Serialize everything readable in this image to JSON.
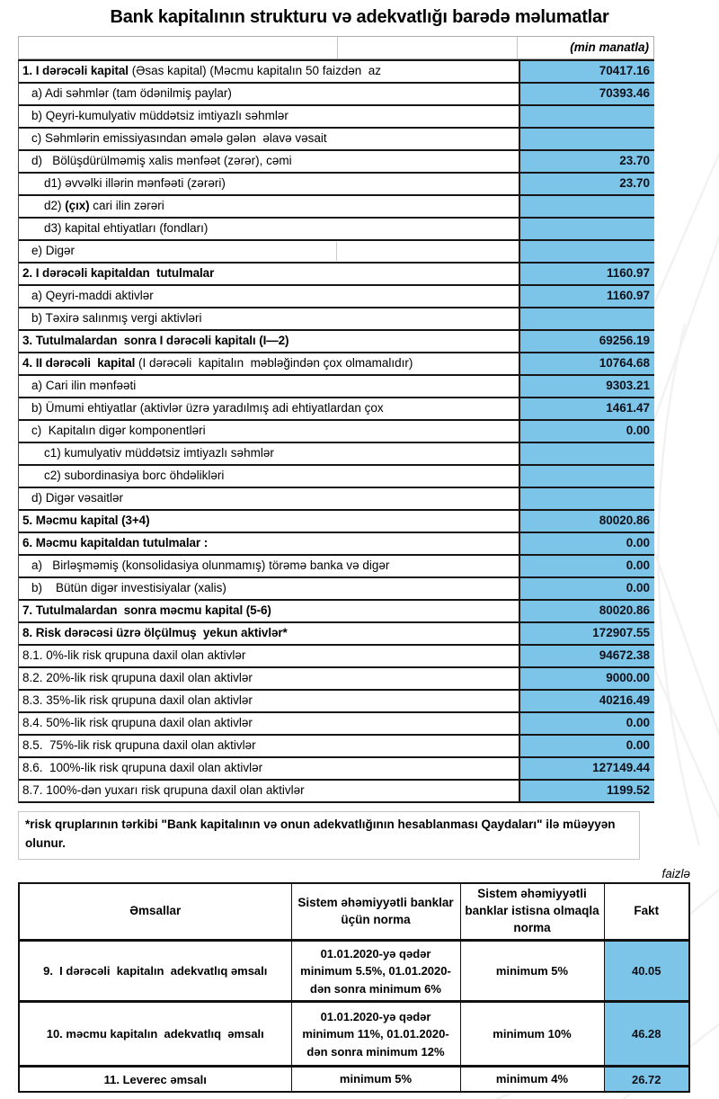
{
  "title": "Bank kapitalının strukturu və adekvatlığı barədə məlumatlar",
  "colors": {
    "cell_blue": "#7cc5e9",
    "border_dark": "#161616"
  },
  "main_table": {
    "unit_label": "(min manatla)",
    "rows": [
      {
        "bold": "1. I dərəcəli kapital",
        "text": " (Əsas kapital) (Məcmu kapitalın 50 faizdən  az",
        "value": "70417.16",
        "indent": 0
      },
      {
        "text": "a) Adi səhmlər (tam ödənilmiş paylar)",
        "value": "70393.46",
        "indent": 1
      },
      {
        "text": "b) Qeyri-kumulyativ müddətsiz imtiyazlı səhmlər",
        "value": "",
        "indent": 1
      },
      {
        "text": "c) Səhmlərin emissiyasından əmələ gələn  əlavə vəsait",
        "value": "",
        "indent": 1
      },
      {
        "text": "d)   Bölüşdürülməmiş xalis mənfəət (zərər), cəmi",
        "value": "23.70",
        "indent": 1
      },
      {
        "text": "d1) əvvəlki illərin mənfəəti (zərəri)",
        "value": "23.70",
        "indent": 2
      },
      {
        "pre": "d2) ",
        "bold": "(çıx)",
        "text": " cari ilin zərəri",
        "value": "",
        "indent": 2
      },
      {
        "text": "d3) kapital ehtiyatları (fondları)",
        "value": "",
        "indent": 2
      },
      {
        "text": "e) Digər",
        "value": "",
        "indent": 1,
        "divider": true
      },
      {
        "bold": "2. I dərəcəli kapitaldan  tutulmalar",
        "value": "1160.97",
        "indent": 0
      },
      {
        "text": "a) Qeyri-maddi aktivlər",
        "value": "1160.97",
        "indent": 1
      },
      {
        "text": "b) Təxirə salınmış vergi aktivləri",
        "value": "",
        "indent": 1
      },
      {
        "bold": "3. Tutulmalardan  sonra I dərəcəli kapitalı (I—2)",
        "value": "69256.19",
        "indent": 0
      },
      {
        "bold": "4. II dərəcəli  kapital",
        "text": " (I dərəcəli  kapitalın  məbləğindən çox olmamalıdır)",
        "value": "10764.68",
        "indent": 0
      },
      {
        "text": "a) Cari ilin mənfəəti",
        "value": "9303.21",
        "indent": 1
      },
      {
        "text": "b) Ümumi ehtiyatlar (aktivlər üzrə yaradılmış adi ehtiyatlardan çox",
        "value": "1461.47",
        "indent": 1
      },
      {
        "text": "c)  Kapitalın digər komponentləri",
        "value": "0.00",
        "indent": 1
      },
      {
        "text": "c1) kumulyativ müddətsiz imtiyazlı səhmlər",
        "value": "",
        "indent": 2
      },
      {
        "text": "c2) subordinasiya borc öhdəlikləri",
        "value": "",
        "indent": 2
      },
      {
        "text": "d) Digər vəsaitlər",
        "value": "",
        "indent": 1
      },
      {
        "bold": "5. Məcmu kapital (3+4)",
        "value": "80020.86",
        "indent": 0
      },
      {
        "bold": "6. Məcmu kapitaldan tutulmalar :",
        "value": "0.00",
        "indent": 0
      },
      {
        "text": "a)   Birləşməmiş (konsolidasiya olunmamış) törəmə banka və digər",
        "value": "0.00",
        "indent": 1
      },
      {
        "text": "b)    Bütün digər investisiyalar (xalis)",
        "value": "0.00",
        "indent": 1
      },
      {
        "bold": "7. Tutulmalardan  sonra məcmu kapital (5-6)",
        "value": "80020.86",
        "indent": 0
      },
      {
        "bold": "8. Risk dərəcəsi üzrə ölçülmuş  yekun aktivlər*",
        "value": "172907.55",
        "indent": 0
      },
      {
        "text": "8.1. 0%-lik risk qrupuna daxil olan aktivlər",
        "value": "94672.38",
        "indent": 0
      },
      {
        "text": "8.2. 20%-lik risk qrupuna daxil olan aktivlər",
        "value": "9000.00",
        "indent": 0
      },
      {
        "text": "8.3. 35%-lik risk qrupuna daxil olan aktivlər",
        "value": "40216.49",
        "indent": 0
      },
      {
        "text": "8.4. 50%-lik risk qrupuna daxil olan aktivlər",
        "value": "0.00",
        "indent": 0
      },
      {
        "text": "8.5.  75%-lik risk qrupuna daxil olan aktivlər",
        "value": "0.00",
        "indent": 0
      },
      {
        "text": "8.6.  100%-lik risk qrupuna daxil olan aktivlər",
        "value": "127149.44",
        "indent": 0
      },
      {
        "text": "8.7. 100%-dən yuxarı risk qrupuna daxil olan aktivlər",
        "value": "1199.52",
        "indent": 0
      }
    ]
  },
  "footnote": "*risk qruplarının tərkibi \"Bank kapitalının və onun adekvatlığının hesablanması Qaydaları\" ilə müəyyən olunur.",
  "ratios_table": {
    "unit_label": "faizlə",
    "headers": [
      "Əmsallar",
      "Sistem əhəmiyyətli banklar üçün norma",
      "Sistem əhəmiyyətli banklar istisna olmaqla norma",
      "Fakt"
    ],
    "rows": [
      {
        "label": "9.  I dərəcəli  kapitalın  adekvatlıq əmsalı",
        "norm_systemic": "01.01.2020-yə qədər minimum 5.5%, 01.01.2020-dən sonra minimum 6%",
        "norm_other": "minimum 5%",
        "fact": "40.05",
        "tall": 1
      },
      {
        "label": "10. məcmu kapitalın  adekvatlıq  əmsalı",
        "norm_systemic": "01.01.2020-yə qədər minimum 11%, 01.01.2020-dən sonra minimum 12%",
        "norm_other": "minimum 10%",
        "fact": "46.28",
        "tall": 2
      },
      {
        "label": "11. Leverec əmsalı",
        "norm_systemic": "minimum 5%",
        "norm_other": "minimum 4%",
        "fact": "26.72",
        "tall": 0
      }
    ]
  }
}
